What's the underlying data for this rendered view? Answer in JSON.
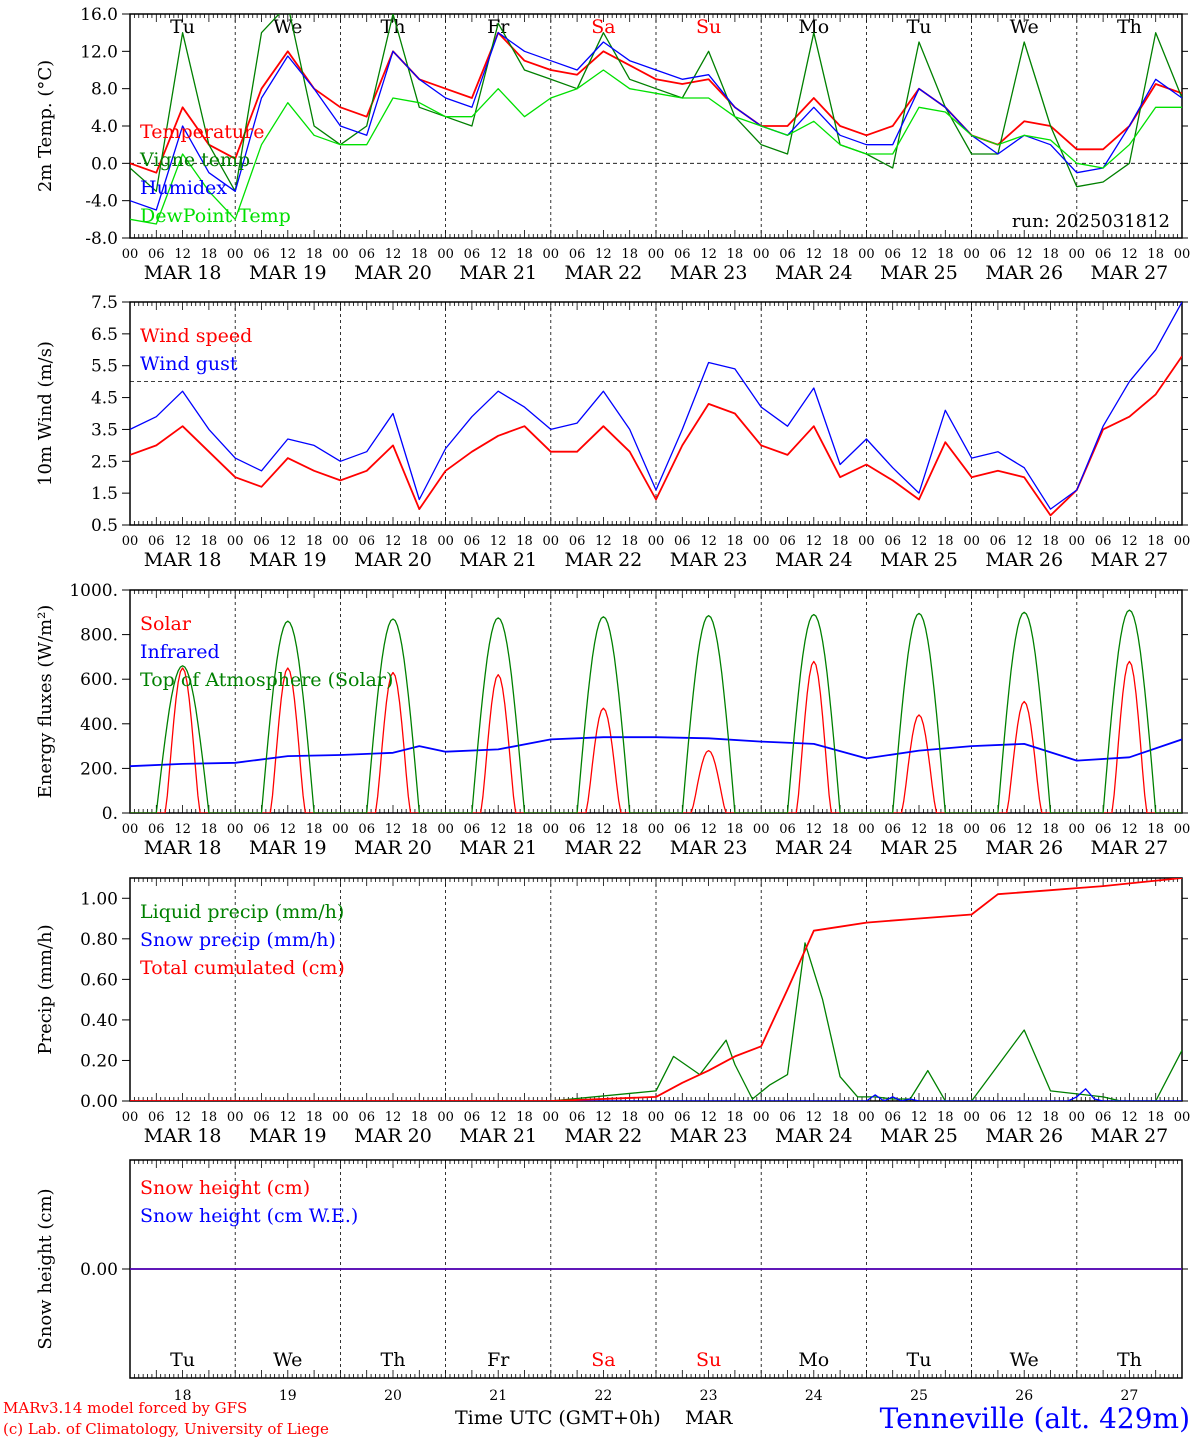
{
  "header": {
    "run_label": "run: 2025031812"
  },
  "footer": {
    "model_line": "MARv3.14 model forced by GFS",
    "copyright_line": "(c) Lab. of Climatology, University of Liege",
    "xlabel": "Time UTC (GMT+0h)",
    "month": "MAR",
    "station": "Tenneville (alt. 429m)"
  },
  "days": [
    {
      "dow": "Tu",
      "date": "MAR 18",
      "day": "18",
      "weekend": false
    },
    {
      "dow": "We",
      "date": "MAR 19",
      "day": "19",
      "weekend": false
    },
    {
      "dow": "Th",
      "date": "MAR 20",
      "day": "20",
      "weekend": false
    },
    {
      "dow": "Fr",
      "date": "MAR 21",
      "day": "21",
      "weekend": false
    },
    {
      "dow": "Sa",
      "date": "MAR 22",
      "day": "22",
      "weekend": true
    },
    {
      "dow": "Su",
      "date": "MAR 23",
      "day": "23",
      "weekend": true
    },
    {
      "dow": "Mo",
      "date": "MAR 24",
      "day": "24",
      "weekend": false
    },
    {
      "dow": "Tu",
      "date": "MAR 25",
      "day": "25",
      "weekend": false
    },
    {
      "dow": "We",
      "date": "MAR 26",
      "day": "26",
      "weekend": false
    },
    {
      "dow": "Th",
      "date": "MAR 27",
      "day": "27",
      "weekend": false
    }
  ],
  "hour_ticks": [
    "00",
    "06",
    "12",
    "18"
  ],
  "last_hour_tick": "00",
  "colors": {
    "red": "#ff0000",
    "green": "#008000",
    "blue": "#0000ff",
    "lightgreen": "#00e000",
    "weekend_label": "#ff0000",
    "station_title": "#0000ff"
  },
  "chart_data": [
    {
      "id": "temp",
      "type": "line",
      "ylabel": "2m Temp. (°C)",
      "ylim": [
        -8,
        16
      ],
      "yticks": [
        -8,
        -4,
        0,
        4,
        8,
        12,
        16
      ],
      "ytick_labels": [
        "-8.0",
        "-4.0",
        "0.0",
        "4.0",
        "8.0",
        "12.0",
        "16.0"
      ],
      "yref": 0,
      "show_dow": true,
      "x_hours": [
        0,
        6,
        12,
        18,
        24,
        30,
        36,
        42,
        48,
        54,
        60,
        66,
        72,
        78,
        84,
        90,
        96,
        102,
        108,
        114,
        120,
        126,
        132,
        138,
        144,
        150,
        156,
        162,
        168,
        174,
        180,
        186,
        192,
        198,
        204,
        210,
        216,
        222,
        228,
        234,
        240
      ],
      "series": [
        {
          "name": "Temperature",
          "color": "red",
          "values": [
            0,
            -1,
            6,
            2,
            0.5,
            8,
            12,
            8,
            6,
            5,
            12,
            9,
            8,
            7,
            14,
            11,
            10,
            9.5,
            12,
            10.5,
            9,
            8.5,
            9,
            6,
            4,
            4,
            7,
            4,
            3,
            4,
            8,
            6,
            3,
            2,
            4.5,
            4,
            1.5,
            1.5,
            4,
            8.5,
            7.5
          ]
        },
        {
          "name": "Vigne temp",
          "color": "green",
          "values": [
            -0.5,
            -3,
            14,
            2,
            -3,
            14,
            17,
            4,
            2,
            4,
            16,
            6,
            5,
            4,
            15,
            10,
            9,
            8,
            14,
            9,
            8,
            7,
            12,
            5,
            2,
            1,
            14,
            2,
            1,
            -0.5,
            13,
            6,
            1,
            1,
            13,
            4,
            -2.5,
            -2,
            0,
            14,
            7
          ]
        },
        {
          "name": "Humidex",
          "color": "blue",
          "values": [
            -4,
            -5,
            4,
            -1,
            -3,
            7,
            11.5,
            8,
            4,
            3,
            12,
            9,
            7,
            6,
            14,
            12,
            11,
            10,
            13,
            11,
            10,
            9,
            9.5,
            6,
            4,
            3,
            6,
            3,
            2,
            2,
            8,
            6,
            3,
            1,
            3,
            2,
            -1,
            -0.5,
            4,
            9,
            7
          ]
        },
        {
          "name": "DewPoint Temp",
          "color": "lightgreen",
          "values": [
            -6,
            -6.5,
            1,
            -3,
            -6,
            2,
            6.5,
            3,
            2,
            2,
            7,
            6.5,
            5,
            5,
            8,
            5,
            7,
            8,
            10,
            8,
            7.5,
            7,
            7,
            5,
            4,
            3,
            4.5,
            2,
            1,
            1,
            6,
            5.5,
            3,
            2,
            3,
            2.5,
            0,
            -0.5,
            2,
            6,
            6
          ]
        }
      ],
      "legend": [
        "Temperature",
        "Vigne temp",
        "Humidex",
        "DewPoint Temp"
      ]
    },
    {
      "id": "wind",
      "type": "line",
      "ylabel": "10m Wind (m/s)",
      "ylim": [
        0.5,
        7.5
      ],
      "yticks": [
        0.5,
        1.5,
        2.5,
        3.5,
        4.5,
        5.5,
        6.5,
        7.5
      ],
      "ytick_labels": [
        "0.5",
        "1.5",
        "2.5",
        "3.5",
        "4.5",
        "5.5",
        "6.5",
        "7.5"
      ],
      "yref": 5,
      "show_dow": false,
      "x_hours": [
        0,
        6,
        12,
        18,
        24,
        30,
        36,
        42,
        48,
        54,
        60,
        66,
        72,
        78,
        84,
        90,
        96,
        102,
        108,
        114,
        120,
        126,
        132,
        138,
        144,
        150,
        156,
        162,
        168,
        174,
        180,
        186,
        192,
        198,
        204,
        210,
        216,
        222,
        228,
        234,
        240
      ],
      "series": [
        {
          "name": "Wind speed",
          "color": "red",
          "values": [
            2.7,
            3.0,
            3.6,
            2.8,
            2.0,
            1.7,
            2.6,
            2.2,
            1.9,
            2.2,
            3.0,
            1.0,
            2.2,
            2.8,
            3.3,
            3.6,
            2.8,
            2.8,
            3.6,
            2.8,
            1.3,
            3.0,
            4.3,
            4.0,
            3.0,
            2.7,
            3.6,
            2.0,
            2.4,
            1.9,
            1.3,
            3.1,
            2.0,
            2.2,
            2.0,
            0.8,
            1.6,
            3.5,
            3.9,
            4.6,
            5.8
          ]
        },
        {
          "name": "Wind gust",
          "color": "blue",
          "values": [
            3.5,
            3.9,
            4.7,
            3.5,
            2.6,
            2.2,
            3.2,
            3.0,
            2.5,
            2.8,
            4.0,
            1.3,
            2.9,
            3.9,
            4.7,
            4.2,
            3.5,
            3.7,
            4.7,
            3.5,
            1.6,
            3.5,
            5.6,
            5.4,
            4.2,
            3.6,
            4.8,
            2.4,
            3.2,
            2.3,
            1.5,
            4.1,
            2.6,
            2.8,
            2.3,
            1.0,
            1.6,
            3.6,
            5.0,
            6.0,
            7.5
          ]
        }
      ],
      "legend": [
        "Wind speed",
        "Wind gust"
      ]
    },
    {
      "id": "energy",
      "type": "line",
      "ylabel": "Energy fluxes (W/m²)",
      "ylim": [
        0,
        1000
      ],
      "yticks": [
        0,
        200,
        400,
        600,
        800,
        1000
      ],
      "ytick_labels": [
        "0.",
        "200.",
        "400.",
        "600.",
        "800.",
        "1000."
      ],
      "show_dow": false,
      "diurnal": {
        "sunrise_hour": 6,
        "sunset_hour": 18,
        "toa_peak": [
          660,
          860,
          870,
          875,
          880,
          885,
          890,
          895,
          900,
          910
        ],
        "solar_peak": [
          650,
          650,
          630,
          620,
          470,
          280,
          680,
          440,
          500,
          680
        ]
      },
      "series": [
        {
          "name": "Solar",
          "color": "red"
        },
        {
          "name": "Infrared",
          "color": "blue",
          "x_hours": [
            0,
            12,
            24,
            36,
            48,
            60,
            66,
            72,
            84,
            96,
            108,
            120,
            132,
            144,
            156,
            168,
            180,
            192,
            204,
            216,
            228,
            240
          ],
          "values": [
            210,
            220,
            225,
            255,
            260,
            270,
            300,
            275,
            285,
            330,
            340,
            340,
            335,
            320,
            310,
            245,
            280,
            300,
            310,
            235,
            250,
            330
          ]
        },
        {
          "name": "Top of Atmosphere (Solar)",
          "color": "green"
        }
      ],
      "legend": [
        "Solar",
        "Infrared",
        "Top of Atmosphere (Solar)"
      ]
    },
    {
      "id": "precip",
      "type": "line",
      "ylabel": "Precip (mm/h)",
      "ylim": [
        0,
        1.1
      ],
      "yticks": [
        0,
        0.2,
        0.4,
        0.6,
        0.8,
        1.0
      ],
      "ytick_labels": [
        "0.00",
        "0.20",
        "0.40",
        "0.60",
        "0.80",
        "1.00"
      ],
      "show_dow": false,
      "series": [
        {
          "name": "Liquid precip (mm/h)",
          "color": "green",
          "x_hours": [
            0,
            96,
            120,
            124,
            130,
            136,
            138,
            142,
            146,
            150,
            154,
            158,
            162,
            166,
            170,
            174,
            178,
            182,
            186,
            192,
            204,
            210,
            222,
            226,
            230,
            234,
            240
          ],
          "values": [
            0,
            0,
            0.05,
            0.22,
            0.13,
            0.3,
            0.18,
            0.01,
            0.08,
            0.13,
            0.78,
            0.5,
            0.12,
            0.02,
            0.02,
            0.01,
            0.01,
            0.15,
            0.0,
            0.0,
            0.35,
            0.05,
            0.02,
            0.0,
            0.0,
            0.0,
            0.25
          ]
        },
        {
          "name": "Snow precip (mm/h)",
          "color": "blue",
          "x_hours": [
            0,
            168,
            170,
            172,
            174,
            176,
            178,
            180,
            182,
            214,
            216,
            218,
            220,
            222,
            240
          ],
          "values": [
            0,
            0,
            0.03,
            0.0,
            0.02,
            0.0,
            0.01,
            0.0,
            0.0,
            0.0,
            0.02,
            0.06,
            0.01,
            0.0,
            0.0
          ]
        },
        {
          "name": "Total cumulated (cm)",
          "color": "red",
          "x_hours": [
            0,
            96,
            120,
            126,
            132,
            138,
            144,
            150,
            156,
            162,
            168,
            180,
            186,
            192,
            198,
            210,
            216,
            222,
            240
          ],
          "values": [
            0,
            0,
            0.02,
            0.09,
            0.15,
            0.22,
            0.27,
            0.55,
            0.84,
            0.86,
            0.88,
            0.9,
            0.91,
            0.92,
            1.02,
            1.04,
            1.05,
            1.06,
            1.1
          ]
        }
      ],
      "legend": [
        "Liquid precip (mm/h)",
        "Snow precip (mm/h)",
        "Total cumulated (cm)"
      ]
    },
    {
      "id": "snow",
      "type": "line",
      "ylabel": "Snow height (cm)",
      "ylim": [
        -1,
        1
      ],
      "yticks": [
        0
      ],
      "ytick_labels": [
        "0.00"
      ],
      "show_dow": false,
      "series": [
        {
          "name": "Snow height (cm)",
          "color": "red",
          "x_hours": [
            0,
            240
          ],
          "values": [
            0,
            0
          ]
        },
        {
          "name": "Snow height (cm W.E.)",
          "color": "blue",
          "x_hours": [
            0,
            240
          ],
          "values": [
            0,
            0
          ]
        }
      ],
      "legend": [
        "Snow height (cm)",
        "Snow height (cm W.E.)"
      ]
    }
  ]
}
